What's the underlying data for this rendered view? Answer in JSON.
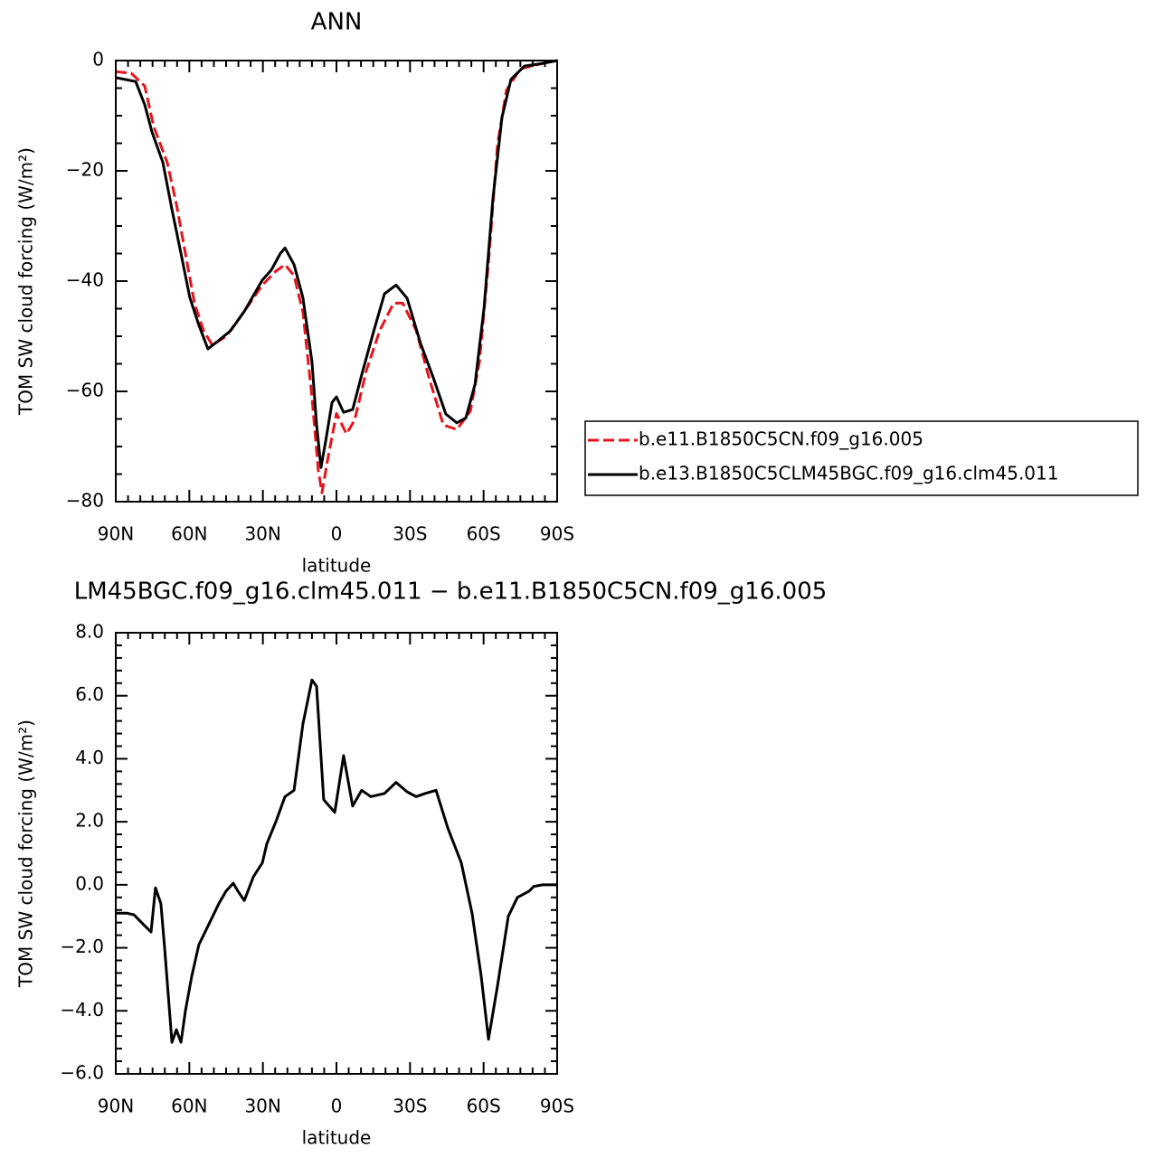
{
  "chart_data": [
    {
      "type": "line",
      "title": "ANN",
      "xlabel": "latitude",
      "ylabel": "TOM SW cloud forcing (W/m²)",
      "xlim": [
        90,
        -90
      ],
      "xticks": [
        {
          "value": 90,
          "label": "90N"
        },
        {
          "value": 60,
          "label": "60N"
        },
        {
          "value": 30,
          "label": "30N"
        },
        0,
        {
          "value": -30,
          "label": "30S"
        },
        {
          "value": -60,
          "label": "60S"
        },
        {
          "value": -90,
          "label": "90S"
        }
      ],
      "ylim": [
        -80,
        0
      ],
      "yticks": [
        {
          "value": -80,
          "label": "−80"
        },
        {
          "value": -60,
          "label": "−60"
        },
        {
          "value": -40,
          "label": "−40"
        },
        {
          "value": -20,
          "label": "−20"
        },
        0
      ],
      "legend": "right",
      "series": [
        {
          "name": "b.e11.B1850C5CN.f09_g16.005",
          "color": "#e8141c",
          "line_style": "dashed",
          "x": [
            90,
            83.7,
            78.2,
            74.5,
            69.0,
            65.3,
            61.6,
            57.9,
            54.2,
            50.6,
            45.0,
            37.6,
            30.2,
            24.7,
            21.0,
            17.3,
            13.7,
            10.0,
            7.4,
            5.9,
            3.7,
            0,
            -4.1,
            -7.4,
            -12.2,
            -17.7,
            -23.3,
            -27.0,
            -32.5,
            -38.0,
            -43.6,
            -49.1,
            -54.6,
            -58.3,
            -62.0,
            -65.7,
            -69.3,
            -74.9,
            -84.1,
            -90
          ],
          "values": [
            -2,
            -2.3,
            -4.6,
            -12,
            -18.5,
            -26,
            -35,
            -44,
            -49,
            -51.6,
            -50,
            -45.5,
            -40.7,
            -38.2,
            -37,
            -39,
            -45.6,
            -61,
            -74.3,
            -78.4,
            -72.6,
            -64,
            -67.7,
            -65.2,
            -56.2,
            -48.9,
            -44,
            -44,
            -48.9,
            -57.9,
            -66.1,
            -66.9,
            -63.6,
            -54.6,
            -36.6,
            -15.2,
            -5.4,
            -1.5,
            -0.5,
            0
          ]
        },
        {
          "name": "b.e13.B1850C5CLM45BGC.f09_g16.clm45.011",
          "color": "#000000",
          "line_style": "solid",
          "x": [
            90,
            81.9,
            78.2,
            75.2,
            70.8,
            67.1,
            63.4,
            59.8,
            56.1,
            52.4,
            48.7,
            43.2,
            37.6,
            30.2,
            26.6,
            22.9,
            21.0,
            17.3,
            13.7,
            10.0,
            8.1,
            6.3,
            4.4,
            1.8,
            0,
            -2.9,
            -6.6,
            -10.3,
            -14.8,
            -19.6,
            -24.3,
            -28.8,
            -34.3,
            -39.8,
            -44.6,
            -49.1,
            -52.8,
            -56.5,
            -60.2,
            -63.8,
            -67.5,
            -71.2,
            -76.7,
            -84.1,
            -90
          ],
          "values": [
            -3.1,
            -3.8,
            -8,
            -13,
            -18.5,
            -27,
            -35,
            -43,
            -48,
            -52.3,
            -51,
            -49,
            -45.5,
            -39.8,
            -38,
            -35,
            -34,
            -37,
            -43,
            -54.6,
            -66,
            -73.8,
            -69,
            -62,
            -61,
            -63.8,
            -63.3,
            -57,
            -49.7,
            -42.3,
            -40.7,
            -43.1,
            -51.3,
            -57.9,
            -64.1,
            -65.7,
            -64.8,
            -58.7,
            -44.8,
            -25,
            -10.3,
            -3.4,
            -1,
            -0.5,
            0
          ]
        }
      ]
    },
    {
      "type": "line",
      "title": "LM45BGC.f09_g16.clm45.011 − b.e11.B1850C5CN.f09_g16.005",
      "xlabel": "latitude",
      "ylabel": "TOM SW cloud forcing (W/m²)",
      "xlim": [
        90,
        -90
      ],
      "xticks": [
        {
          "value": 90,
          "label": "90N"
        },
        {
          "value": 60,
          "label": "60N"
        },
        {
          "value": 30,
          "label": "30N"
        },
        0,
        {
          "value": -30,
          "label": "30S"
        },
        {
          "value": -60,
          "label": "60S"
        },
        {
          "value": -90,
          "label": "90S"
        }
      ],
      "ylim": [
        -6,
        8
      ],
      "yticks": [
        {
          "value": -6,
          "label": "−6.0"
        },
        {
          "value": -4,
          "label": "−4.0"
        },
        {
          "value": -2,
          "label": "−2.0"
        },
        {
          "value": 0,
          "label": "0.0"
        },
        {
          "value": 2,
          "label": "2.0"
        },
        {
          "value": 4,
          "label": "4.0"
        },
        {
          "value": 6,
          "label": "6.0"
        },
        {
          "value": 8,
          "label": "8.0"
        }
      ],
      "series": [
        {
          "color": "#000000",
          "line_style": "solid",
          "x": [
            90,
            85.6,
            82.6,
            78.2,
            75.6,
            73.8,
            71.6,
            70.1,
            67.1,
            65.3,
            63.4,
            61.6,
            59.0,
            56.1,
            51.7,
            48.0,
            45.0,
            42.1,
            40.2,
            37.6,
            33.9,
            30.2,
            28.4,
            24.7,
            21.0,
            17.3,
            13.7,
            10.0,
            8.1,
            5.2,
            0.7,
            -2.9,
            -6.6,
            -10.3,
            -14.0,
            -19.6,
            -24.3,
            -28.8,
            -32.5,
            -36.2,
            -40.6,
            -45.4,
            -50.9,
            -55.3,
            -59.0,
            -62.0,
            -65.7,
            -70.1,
            -73.8,
            -78.6,
            -80.5,
            -84.1,
            -90
          ],
          "values": [
            -0.9,
            -0.9,
            -0.95,
            -1.3,
            -1.5,
            -0.1,
            -0.6,
            -2.0,
            -5.0,
            -4.6,
            -5.0,
            -4.0,
            -2.9,
            -1.9,
            -1.2,
            -0.6,
            -0.2,
            0.05,
            -0.2,
            -0.5,
            0.25,
            0.7,
            1.3,
            2.0,
            2.8,
            3.0,
            5.1,
            6.5,
            6.3,
            2.7,
            2.3,
            4.1,
            2.5,
            3.0,
            2.8,
            2.9,
            3.25,
            2.95,
            2.8,
            2.9,
            3.0,
            1.8,
            0.7,
            -0.9,
            -2.9,
            -4.9,
            -3.2,
            -1.0,
            -0.4,
            -0.2,
            -0.05,
            0,
            0
          ]
        }
      ]
    }
  ]
}
